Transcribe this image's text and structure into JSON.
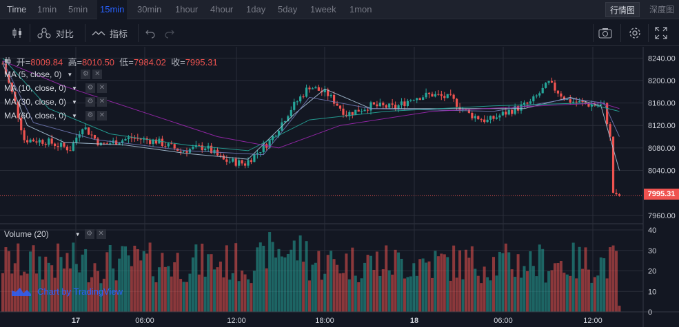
{
  "topbar": {
    "timeframes": [
      "Time",
      "1min",
      "5min",
      "15min",
      "30min",
      "1hour",
      "4hour",
      "1day",
      "5day",
      "1week",
      "1mon"
    ],
    "active_timeframe": "15min",
    "views": [
      "行情图",
      "深度图"
    ],
    "active_view": "行情图"
  },
  "toolbar": {
    "compare_label": "对比",
    "indicators_label": "指标"
  },
  "legend": {
    "open_label": "开=",
    "open": "8009.84",
    "high_label": "高=",
    "high": "8010.50",
    "low_label": "低=",
    "low": "7984.02",
    "close_label": "收=",
    "close": "7995.31",
    "ma": [
      {
        "label": "MA (5, close, 0)"
      },
      {
        "label": "MA (10, close, 0)"
      },
      {
        "label": "MA (30, close, 0)"
      },
      {
        "label": "MA (60, close, 0)"
      }
    ],
    "volume_label": "Volume (20)"
  },
  "brand": "Chart by TradingView",
  "colors": {
    "up": "#26a69a",
    "down": "#ef5350",
    "background": "#131722",
    "grid": "#2a2e39",
    "ma5": "#a7c1d6",
    "ma10": "#6f78b4",
    "ma30": "#26a69a",
    "ma60": "#9c27b0",
    "accent": "#2962ff"
  },
  "icons": [
    "candles-icon",
    "compare-icon",
    "indicators-icon",
    "undo-icon",
    "redo-icon",
    "camera-icon",
    "gear-icon",
    "fullscreen-icon"
  ],
  "chart_data": {
    "type": "candlestick",
    "current_price": "7995.31",
    "price_axis": {
      "ticks": [
        "8240.00",
        "8200.00",
        "8160.00",
        "8120.00",
        "8080.00",
        "8040.00",
        "7960.00"
      ],
      "range": [
        7945,
        8260
      ]
    },
    "volume_axis": {
      "ticks": [
        "40",
        "30",
        "20",
        "10",
        "0"
      ],
      "range": [
        0,
        40
      ]
    },
    "time_axis": {
      "ticks": [
        "17",
        "06:00",
        "12:00",
        "18:00",
        "18",
        "06:00",
        "12:00"
      ]
    },
    "price_keypoints": [
      {
        "i": 0,
        "p": 8230
      },
      {
        "i": 4,
        "p": 8160
      },
      {
        "i": 7,
        "p": 8095
      },
      {
        "i": 14,
        "p": 8092
      },
      {
        "i": 22,
        "p": 8078
      },
      {
        "i": 26,
        "p": 8120
      },
      {
        "i": 32,
        "p": 8085
      },
      {
        "i": 42,
        "p": 8098
      },
      {
        "i": 50,
        "p": 8092
      },
      {
        "i": 58,
        "p": 8075
      },
      {
        "i": 66,
        "p": 8082
      },
      {
        "i": 72,
        "p": 8058
      },
      {
        "i": 79,
        "p": 8052
      },
      {
        "i": 87,
        "p": 8092
      },
      {
        "i": 94,
        "p": 8150
      },
      {
        "i": 100,
        "p": 8190
      },
      {
        "i": 106,
        "p": 8175
      },
      {
        "i": 112,
        "p": 8140
      },
      {
        "i": 120,
        "p": 8155
      },
      {
        "i": 128,
        "p": 8152
      },
      {
        "i": 134,
        "p": 8170
      },
      {
        "i": 140,
        "p": 8175
      },
      {
        "i": 146,
        "p": 8168
      },
      {
        "i": 152,
        "p": 8140
      },
      {
        "i": 158,
        "p": 8128
      },
      {
        "i": 165,
        "p": 8145
      },
      {
        "i": 172,
        "p": 8160
      },
      {
        "i": 178,
        "p": 8195
      },
      {
        "i": 184,
        "p": 8165
      },
      {
        "i": 190,
        "p": 8158
      },
      {
        "i": 196,
        "p": 8155
      },
      {
        "i": 198,
        "p": 8100
      },
      {
        "i": 199,
        "p": 8000
      },
      {
        "i": 201,
        "p": 7995
      }
    ],
    "ma_anchor_points": {
      "ma5": [
        [
          0,
          8230
        ],
        [
          8,
          8120
        ],
        [
          20,
          8090
        ],
        [
          40,
          8085
        ],
        [
          60,
          8070
        ],
        [
          80,
          8060
        ],
        [
          95,
          8140
        ],
        [
          105,
          8185
        ],
        [
          120,
          8150
        ],
        [
          150,
          8150
        ],
        [
          170,
          8150
        ],
        [
          185,
          8170
        ],
        [
          195,
          8155
        ],
        [
          201,
          8040
        ]
      ],
      "ma10": [
        [
          0,
          8235
        ],
        [
          10,
          8125
        ],
        [
          30,
          8095
        ],
        [
          60,
          8075
        ],
        [
          85,
          8068
        ],
        [
          100,
          8170
        ],
        [
          120,
          8150
        ],
        [
          160,
          8145
        ],
        [
          185,
          8168
        ],
        [
          196,
          8160
        ],
        [
          201,
          8100
        ]
      ],
      "ma30": [
        [
          0,
          8240
        ],
        [
          15,
          8150
        ],
        [
          35,
          8105
        ],
        [
          60,
          8085
        ],
        [
          80,
          8075
        ],
        [
          100,
          8130
        ],
        [
          125,
          8145
        ],
        [
          160,
          8155
        ],
        [
          190,
          8160
        ],
        [
          201,
          8145
        ]
      ],
      "ma60": [
        [
          0,
          8235
        ],
        [
          20,
          8190
        ],
        [
          45,
          8145
        ],
        [
          70,
          8100
        ],
        [
          90,
          8080
        ],
        [
          110,
          8120
        ],
        [
          140,
          8145
        ],
        [
          175,
          8155
        ],
        [
          195,
          8160
        ],
        [
          201,
          8150
        ]
      ]
    },
    "volume_note": "values 0-40 per candle"
  }
}
